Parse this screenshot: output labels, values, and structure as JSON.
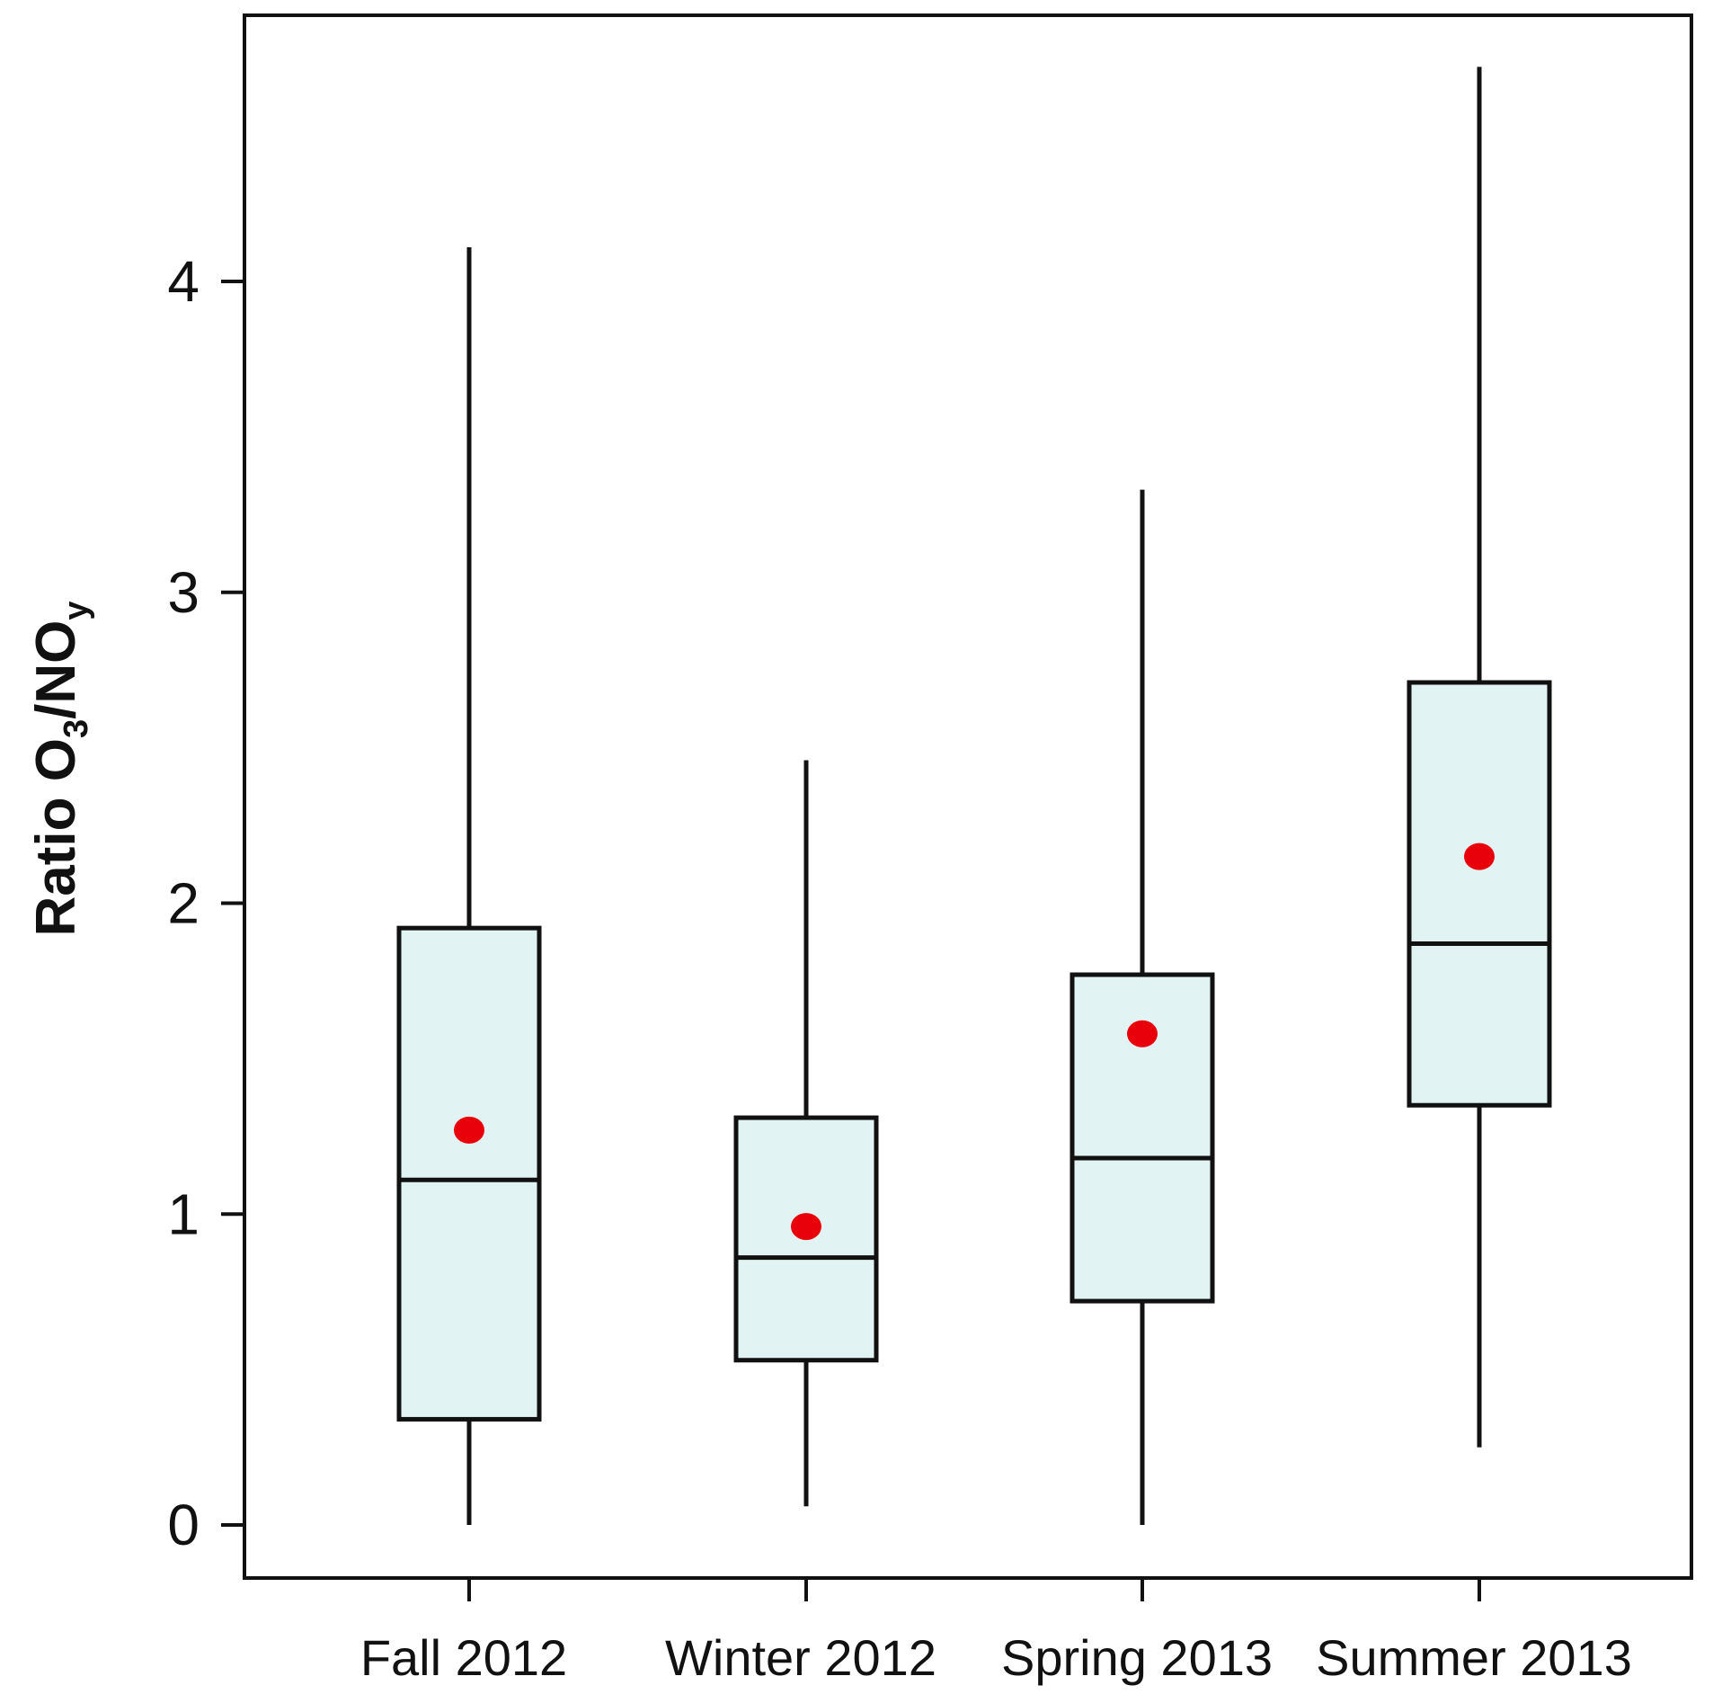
{
  "chart_data": {
    "type": "box",
    "ylabel": {
      "prefix": "Ratio O",
      "sub1": "3",
      "middle": "/NO",
      "sub2": "y"
    },
    "categories": [
      "Fall 2012",
      "Winter 2012",
      "Spring 2013",
      "Summer 2013"
    ],
    "boxes": [
      {
        "whisker_low": 0.0,
        "q1": 0.34,
        "median": 1.11,
        "q3": 1.92,
        "whisker_high": 4.11,
        "mean": 1.27
      },
      {
        "whisker_low": 0.06,
        "q1": 0.53,
        "median": 0.86,
        "q3": 1.31,
        "whisker_high": 2.46,
        "mean": 0.96
      },
      {
        "whisker_low": 0.0,
        "q1": 0.72,
        "median": 1.18,
        "q3": 1.77,
        "whisker_high": 3.33,
        "mean": 1.58
      },
      {
        "whisker_low": 0.25,
        "q1": 1.35,
        "median": 1.87,
        "q3": 2.71,
        "whisker_high": 4.69,
        "mean": 2.15
      }
    ],
    "yticks": [
      "0",
      "1",
      "2",
      "3",
      "4"
    ],
    "ylim": [
      -0.17,
      4.86
    ],
    "grid": false,
    "colors": {
      "box_fill": "#e2f3f3",
      "line": "#111111",
      "mean_marker": "#e8000b"
    }
  }
}
